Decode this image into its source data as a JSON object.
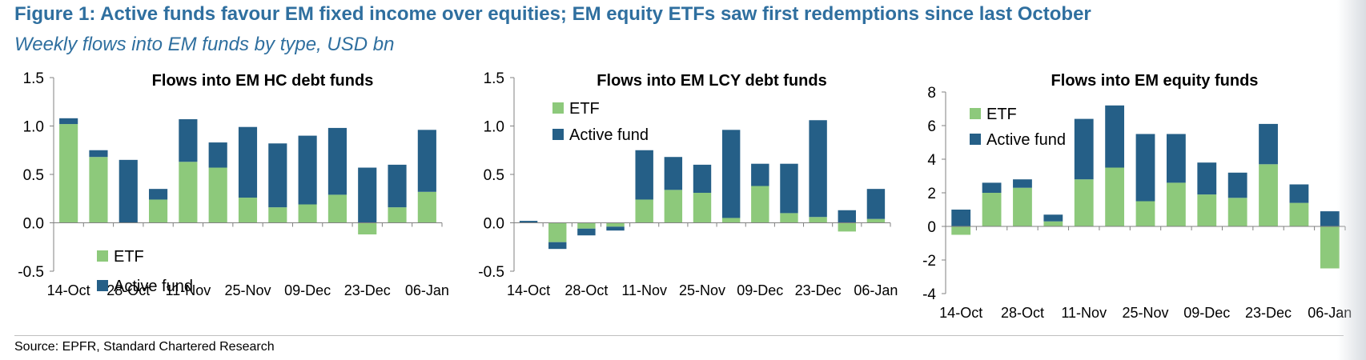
{
  "figure": {
    "title": "Figure 1: Active funds favour EM fixed income over equities; EM equity ETFs saw first redemptions since last October",
    "subtitle": "Weekly flows into EM funds by type, USD bn",
    "source": "Source: EPFR, Standard Chartered Research"
  },
  "colors": {
    "etf": "#8dc97b",
    "active": "#255f87",
    "axis": "#808080",
    "title": "#2f6f9f"
  },
  "chart_data": [
    {
      "type": "bar",
      "stacked": true,
      "title": "Flows into EM HC debt funds",
      "ylim": [
        -0.5,
        1.5
      ],
      "yticks": [
        "1.5",
        "1.0",
        "0.5",
        "0.0",
        "-0.5"
      ],
      "ytick_values": [
        1.5,
        1.0,
        0.5,
        0.0,
        -0.5
      ],
      "xtick_labels": [
        "14-Oct",
        "28-Oct",
        "11-Nov",
        "25-Nov",
        "09-Dec",
        "23-Dec",
        "06-Jan"
      ],
      "legend_position": "bottom-left",
      "series": [
        {
          "name": "ETF",
          "values": [
            1.02,
            0.68,
            0.0,
            0.24,
            0.63,
            0.57,
            0.26,
            0.16,
            0.19,
            0.29,
            -0.12,
            0.16,
            0.32
          ]
        },
        {
          "name": "Active fund",
          "values": [
            0.06,
            0.07,
            0.65,
            0.11,
            0.44,
            0.26,
            0.73,
            0.66,
            0.71,
            0.69,
            0.57,
            0.44,
            0.64
          ]
        }
      ]
    },
    {
      "type": "bar",
      "stacked": true,
      "title": "Flows into EM LCY debt funds",
      "ylim": [
        -0.5,
        1.5
      ],
      "yticks": [
        "1.5",
        "1.0",
        "0.5",
        "0.0",
        "-0.5"
      ],
      "ytick_values": [
        1.5,
        1.0,
        0.5,
        0.0,
        -0.5
      ],
      "xtick_labels": [
        "14-Oct",
        "28-Oct",
        "11-Nov",
        "25-Nov",
        "09-Dec",
        "23-Dec",
        "06-Jan"
      ],
      "legend_position": "top-left",
      "series": [
        {
          "name": "ETF",
          "values": [
            0.0,
            -0.2,
            -0.06,
            -0.04,
            0.24,
            0.34,
            0.31,
            0.05,
            0.38,
            0.1,
            0.06,
            -0.09,
            0.04
          ]
        },
        {
          "name": "Active fund",
          "values": [
            0.02,
            -0.07,
            -0.07,
            -0.04,
            0.51,
            0.34,
            0.29,
            0.91,
            0.23,
            0.51,
            1.0,
            0.13,
            0.31
          ]
        }
      ]
    },
    {
      "type": "bar",
      "stacked": true,
      "title": "Flows into EM equity funds",
      "ylim": [
        -4,
        8
      ],
      "yticks": [
        "8",
        "6",
        "4",
        "2",
        "0",
        "-2",
        "-4"
      ],
      "ytick_values": [
        8,
        6,
        4,
        2,
        0,
        -2,
        -4
      ],
      "xtick_labels": [
        "14-Oct",
        "28-Oct",
        "11-Nov",
        "25-Nov",
        "09-Dec",
        "23-Dec",
        "06-Jan"
      ],
      "legend_position": "top-left",
      "series": [
        {
          "name": "ETF",
          "values": [
            -0.5,
            2.0,
            2.3,
            0.3,
            2.8,
            3.5,
            1.5,
            2.6,
            1.9,
            1.7,
            3.7,
            1.4,
            -2.5
          ]
        },
        {
          "name": "Active fund",
          "values": [
            1.0,
            0.6,
            0.5,
            0.4,
            3.6,
            3.7,
            4.0,
            2.9,
            1.9,
            1.5,
            2.4,
            1.1,
            0.9
          ]
        }
      ]
    }
  ]
}
